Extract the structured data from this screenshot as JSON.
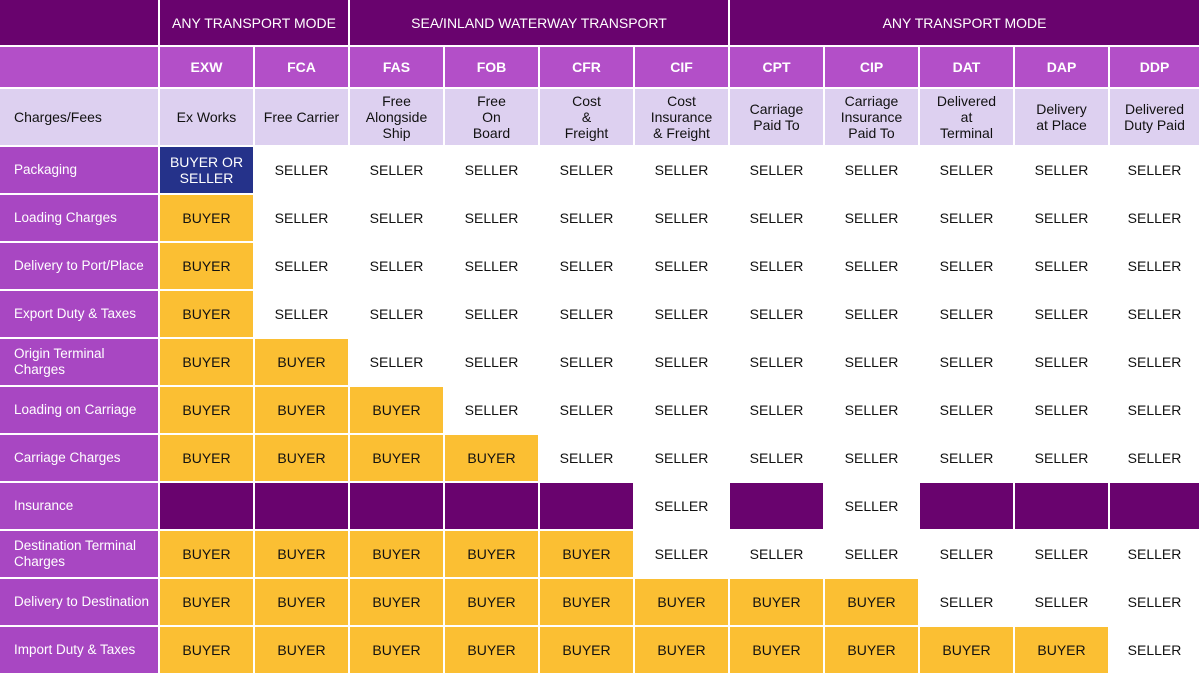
{
  "groups": [
    {
      "label": "ANY TRANSPORT MODE",
      "span": 2
    },
    {
      "label": "SEA/INLAND WATERWAY TRANSPORT",
      "span": 4
    },
    {
      "label": "ANY TRANSPORT MODE",
      "span": 5
    }
  ],
  "header_label": "Charges/Fees",
  "terms": [
    {
      "code": "EXW",
      "name": "Ex Works"
    },
    {
      "code": "FCA",
      "name": "Free Carrier"
    },
    {
      "code": "FAS",
      "name": "Free\nAlongside\nShip"
    },
    {
      "code": "FOB",
      "name": "Free\nOn\nBoard"
    },
    {
      "code": "CFR",
      "name": "Cost\n&\nFreight"
    },
    {
      "code": "CIF",
      "name": "Cost\nInsurance\n& Freight"
    },
    {
      "code": "CPT",
      "name": "Carriage\nPaid To"
    },
    {
      "code": "CIP",
      "name": "Carriage\nInsurance\nPaid To"
    },
    {
      "code": "DAT",
      "name": "Delivered\nat\nTerminal"
    },
    {
      "code": "DAP",
      "name": "Delivery\nat Place"
    },
    {
      "code": "DDP",
      "name": "Delivered\nDuty Paid"
    }
  ],
  "rows": [
    {
      "label": "Packaging",
      "cells": [
        "BUYER OR\nSELLER",
        "SELLER",
        "SELLER",
        "SELLER",
        "SELLER",
        "SELLER",
        "SELLER",
        "SELLER",
        "SELLER",
        "SELLER",
        "SELLER"
      ]
    },
    {
      "label": "Loading Charges",
      "cells": [
        "BUYER",
        "SELLER",
        "SELLER",
        "SELLER",
        "SELLER",
        "SELLER",
        "SELLER",
        "SELLER",
        "SELLER",
        "SELLER",
        "SELLER"
      ]
    },
    {
      "label": "Delivery to Port/Place",
      "cells": [
        "BUYER",
        "SELLER",
        "SELLER",
        "SELLER",
        "SELLER",
        "SELLER",
        "SELLER",
        "SELLER",
        "SELLER",
        "SELLER",
        "SELLER"
      ]
    },
    {
      "label": "Export Duty & Taxes",
      "cells": [
        "BUYER",
        "SELLER",
        "SELLER",
        "SELLER",
        "SELLER",
        "SELLER",
        "SELLER",
        "SELLER",
        "SELLER",
        "SELLER",
        "SELLER"
      ]
    },
    {
      "label": "Origin Terminal\nCharges",
      "cells": [
        "BUYER",
        "BUYER",
        "SELLER",
        "SELLER",
        "SELLER",
        "SELLER",
        "SELLER",
        "SELLER",
        "SELLER",
        "SELLER",
        "SELLER"
      ]
    },
    {
      "label": "Loading on Carriage",
      "cells": [
        "BUYER",
        "BUYER",
        "BUYER",
        "SELLER",
        "SELLER",
        "SELLER",
        "SELLER",
        "SELLER",
        "SELLER",
        "SELLER",
        "SELLER"
      ]
    },
    {
      "label": "Carriage Charges",
      "cells": [
        "BUYER",
        "BUYER",
        "BUYER",
        "BUYER",
        "SELLER",
        "SELLER",
        "SELLER",
        "SELLER",
        "SELLER",
        "SELLER",
        "SELLER"
      ]
    },
    {
      "label": "Insurance",
      "cells": [
        "",
        "",
        "",
        "",
        "",
        "SELLER",
        "",
        "SELLER",
        "",
        "",
        ""
      ]
    },
    {
      "label": "Destination Terminal\nCharges",
      "cells": [
        "BUYER",
        "BUYER",
        "BUYER",
        "BUYER",
        "BUYER",
        "SELLER",
        "SELLER",
        "SELLER",
        "SELLER",
        "SELLER",
        "SELLER"
      ]
    },
    {
      "label": "Delivery to Destination",
      "cells": [
        "BUYER",
        "BUYER",
        "BUYER",
        "BUYER",
        "BUYER",
        "BUYER",
        "BUYER",
        "BUYER",
        "SELLER",
        "SELLER",
        "SELLER"
      ]
    },
    {
      "label": "Import Duty & Taxes",
      "cells": [
        "BUYER",
        "BUYER",
        "BUYER",
        "BUYER",
        "BUYER",
        "BUYER",
        "BUYER",
        "BUYER",
        "BUYER",
        "BUYER",
        "SELLER"
      ]
    }
  ],
  "colors": {
    "group_header": "#69036e",
    "code_header": "#b34fc8",
    "name_header": "#ddd0f0",
    "row_label": "#a847c2",
    "buyer": "#fbbf33",
    "seller": "#ffffff",
    "buyer_or_seller": "#25328a",
    "not_applicable": "#69036e"
  }
}
